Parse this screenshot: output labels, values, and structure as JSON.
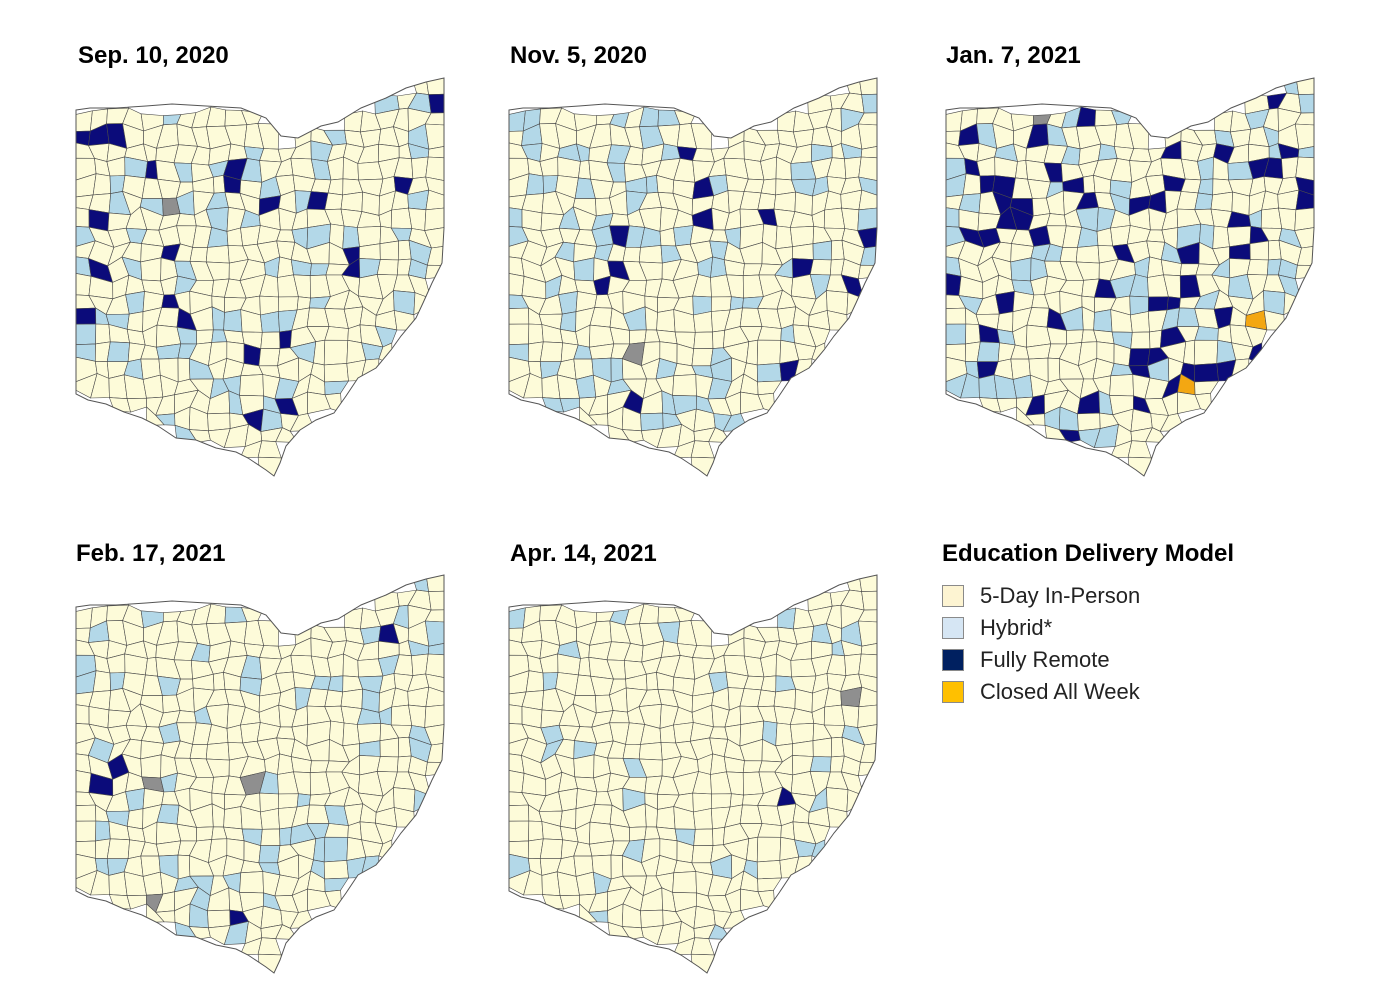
{
  "colors": {
    "in_person": "#fdfbd9",
    "hybrid": "#b3d8e8",
    "remote": "#0b0b7a",
    "closed": "#f3a712",
    "border": "#4a4a4a",
    "urban": "#8f8f8f"
  },
  "panels": [
    {
      "title": "Sep. 10, 2020",
      "status_counts": {
        "hybrid": 70,
        "remote": 22,
        "closed": 0,
        "urban": 1
      }
    },
    {
      "title": "Nov. 5, 2020",
      "status_counts": {
        "hybrid": 80,
        "remote": 12,
        "closed": 0,
        "urban": 1
      }
    },
    {
      "title": "Jan. 7, 2021",
      "status_counts": {
        "hybrid": 75,
        "remote": 55,
        "closed": 2,
        "urban": 1
      }
    },
    {
      "title": "Feb. 17, 2021",
      "status_counts": {
        "hybrid": 62,
        "remote": 4,
        "closed": 0,
        "urban": 3
      }
    },
    {
      "title": "Apr. 14, 2021",
      "status_counts": {
        "hybrid": 30,
        "remote": 1,
        "closed": 0,
        "urban": 1
      }
    }
  ],
  "legend": {
    "title": "Education Delivery Model",
    "items": [
      {
        "label": "5-Day In-Person",
        "color": "#fdf4d2"
      },
      {
        "label": "Hybrid*",
        "color": "#d6e6f4"
      },
      {
        "label": "Fully Remote",
        "color": "#002060"
      },
      {
        "label": "Closed All Week",
        "color": "#ffc000"
      }
    ]
  }
}
